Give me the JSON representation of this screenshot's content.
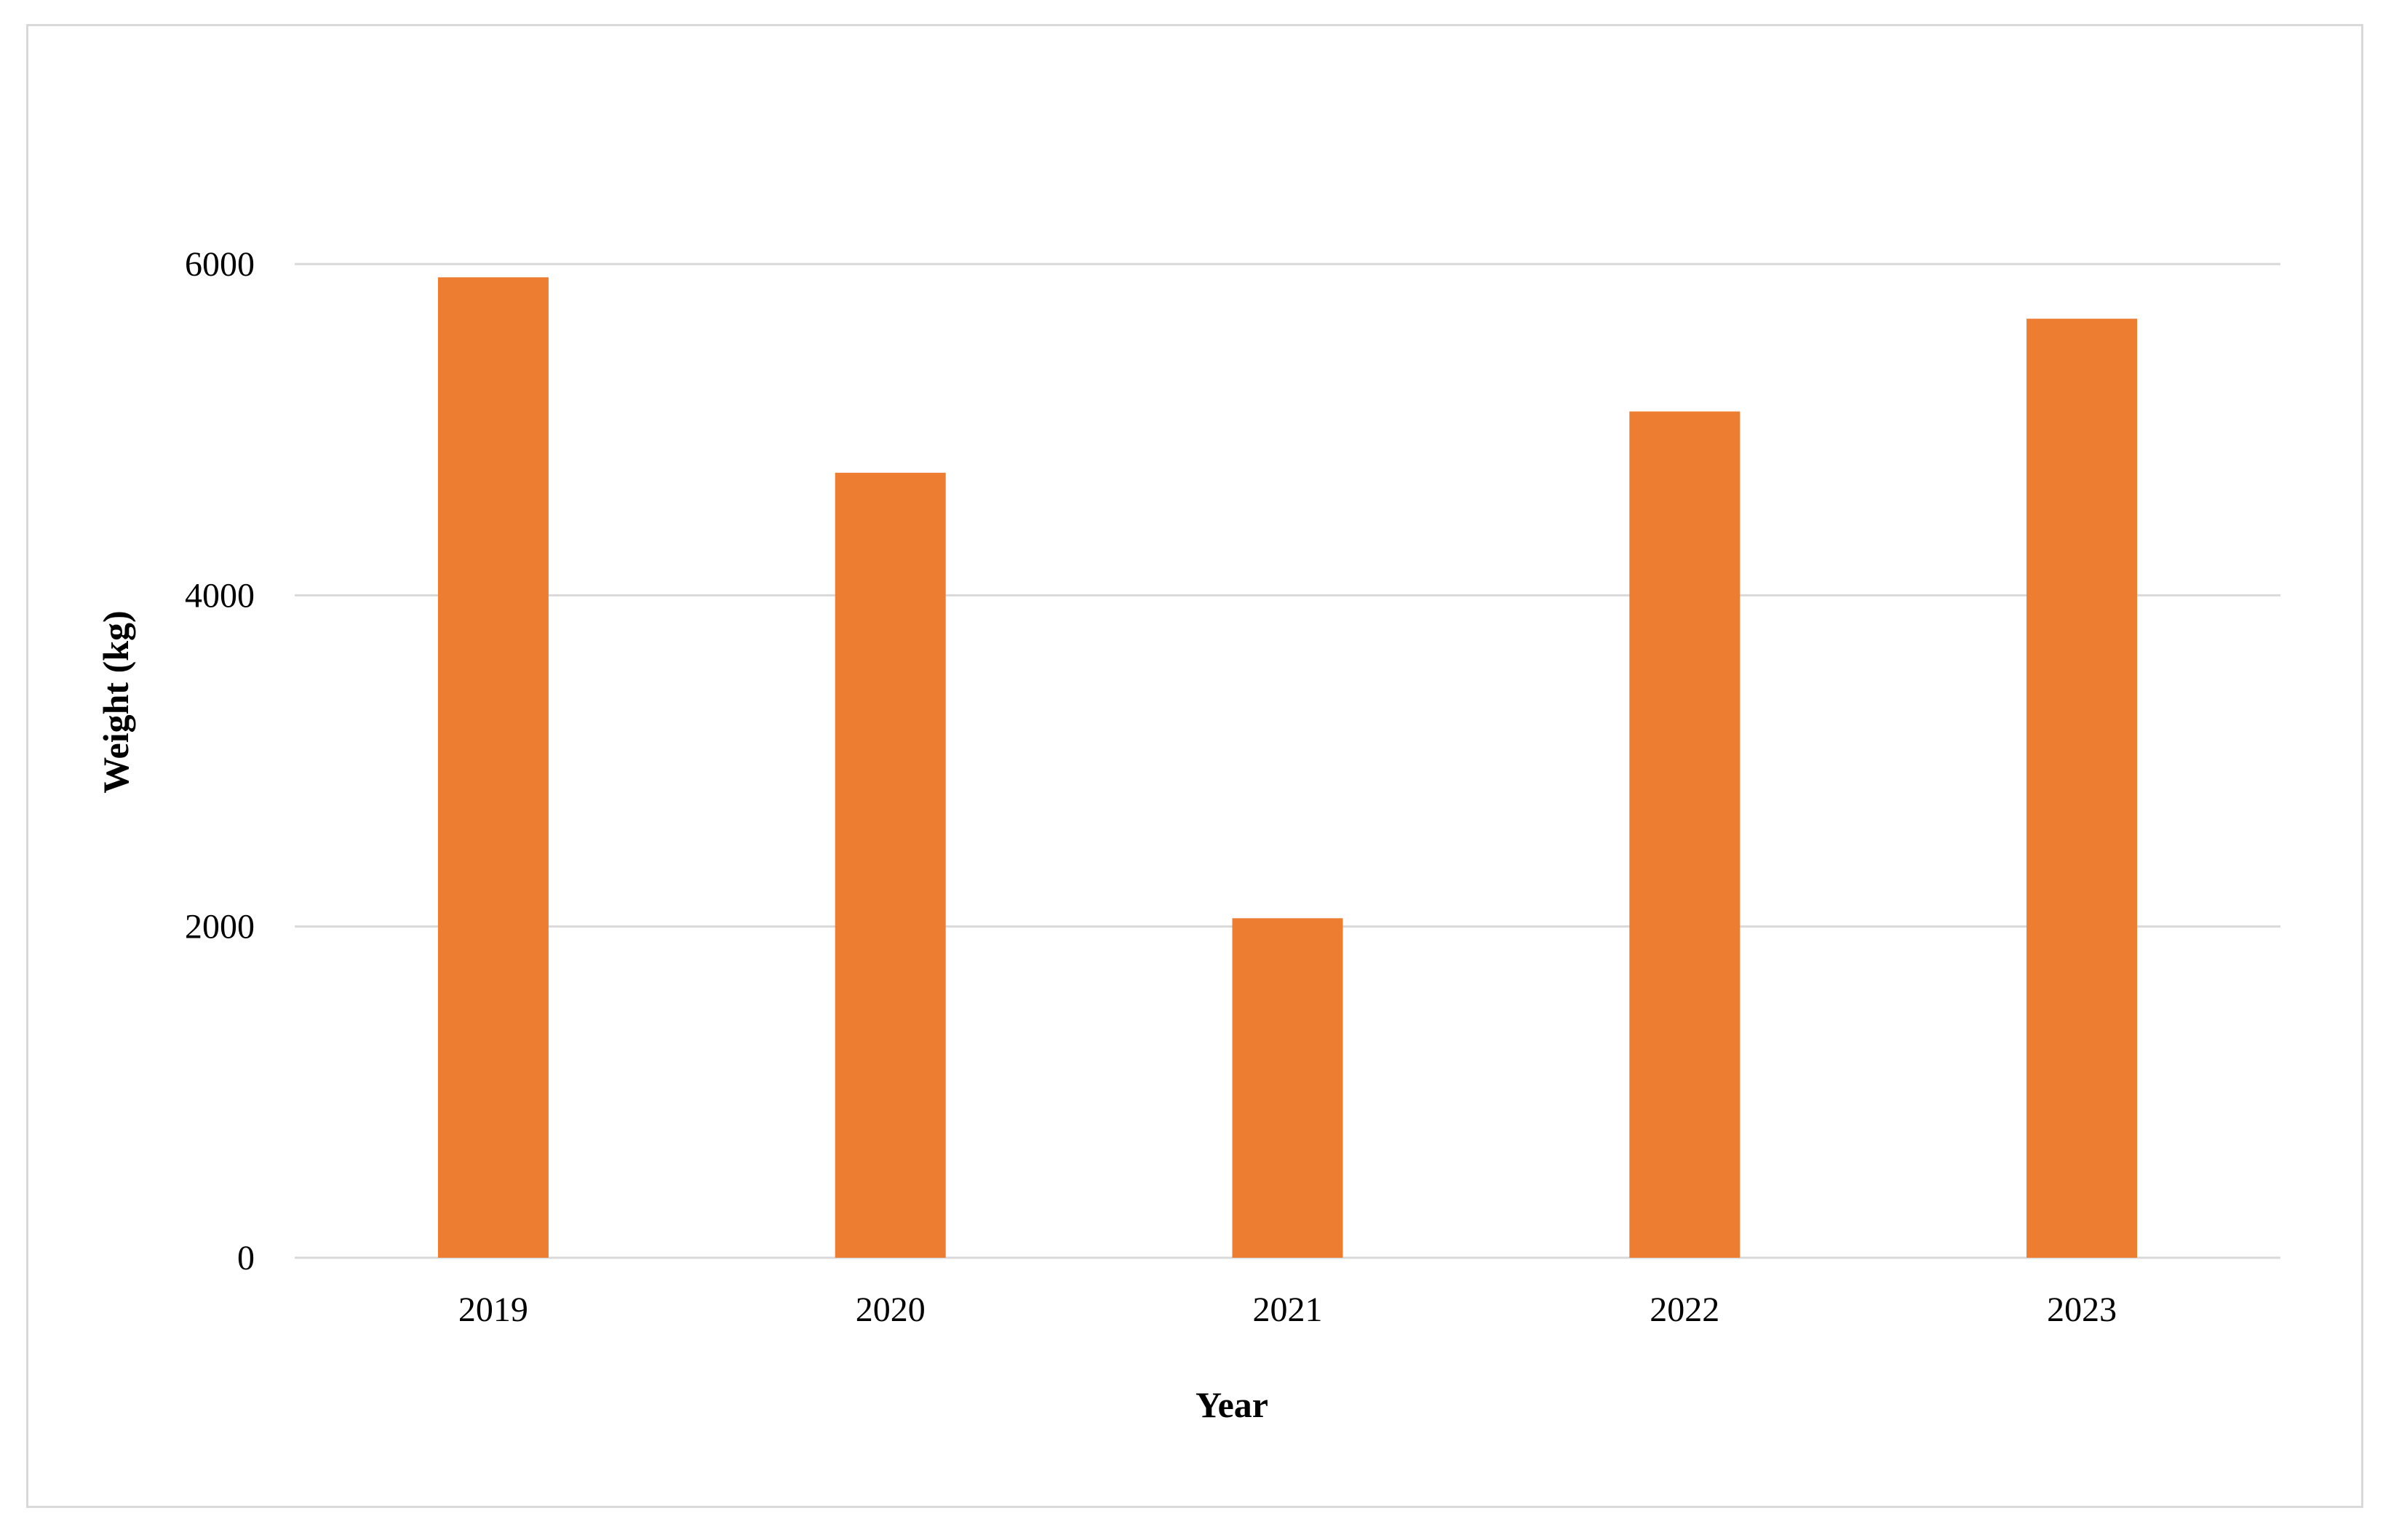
{
  "chart_data": {
    "type": "bar",
    "title": "",
    "xlabel": "Year",
    "ylabel": "Weight (kg)",
    "categories": [
      "2019",
      "2020",
      "2021",
      "2022",
      "2023"
    ],
    "values": [
      5920,
      4740,
      2050,
      5110,
      5670
    ],
    "ylim": [
      0,
      6000
    ],
    "yticks": [
      "0",
      "2000",
      "4000",
      "6000"
    ],
    "grid": true,
    "legend": "none",
    "colors": {
      "bar": "#ED7D31",
      "grid": "#d9d9d9",
      "frame": "#d9d9d9"
    }
  }
}
